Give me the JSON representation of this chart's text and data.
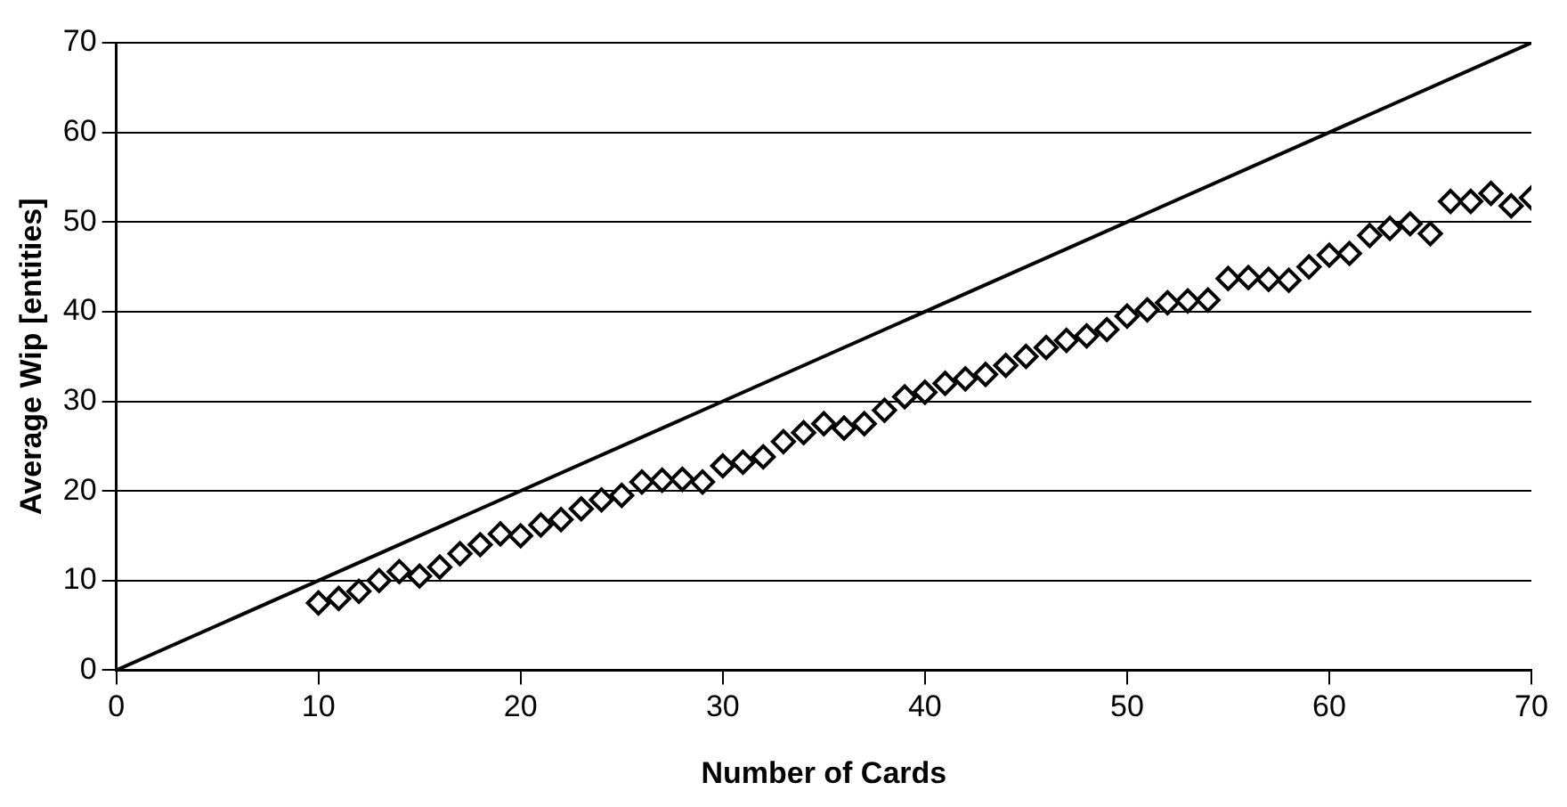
{
  "chart_data": {
    "type": "scatter",
    "xlabel": "Number of Cards",
    "ylabel": "Average Wip [entities]",
    "xlim": [
      0,
      70
    ],
    "ylim": [
      0,
      70
    ],
    "xticks": [
      0,
      10,
      20,
      30,
      40,
      50,
      60,
      70
    ],
    "yticks": [
      0,
      10,
      20,
      30,
      40,
      50,
      60,
      70
    ],
    "grid": "y",
    "legend": false,
    "series": [
      {
        "type": "line",
        "color": "#000000",
        "marker": "none",
        "x": [
          0,
          70
        ],
        "values": [
          0,
          70
        ]
      },
      {
        "color": "#000000",
        "marker": "diamond",
        "x": [
          10,
          11,
          12,
          13,
          14,
          15,
          16,
          17,
          18,
          19,
          20,
          21,
          22,
          23,
          24,
          25,
          26,
          27,
          28,
          29,
          30,
          31,
          32,
          33,
          34,
          35,
          36,
          37,
          38,
          39,
          40,
          41,
          42,
          43,
          44,
          45,
          46,
          47,
          48,
          49,
          50,
          51,
          52,
          53,
          54,
          55,
          56,
          57,
          58,
          59,
          60,
          61,
          62,
          63,
          64,
          65,
          66,
          67,
          68,
          69,
          70
        ],
        "values": [
          7.5,
          8,
          8.8,
          10,
          11,
          10.5,
          11.5,
          13,
          14,
          15.2,
          15,
          16.2,
          16.8,
          18,
          19,
          19.5,
          21,
          21.2,
          21.3,
          21,
          22.8,
          23.2,
          23.8,
          25.5,
          26.5,
          27.5,
          27,
          27.5,
          29,
          30.5,
          31,
          32,
          32.5,
          33,
          34,
          35,
          36,
          36.8,
          37.3,
          38,
          39.5,
          40.2,
          41,
          41.2,
          41.3,
          43.7,
          43.8,
          43.6,
          43.5,
          45,
          46.3,
          46.5,
          48.5,
          49.3,
          49.8,
          48.7,
          52.3,
          52.3,
          53.2,
          51.8,
          52.7
        ]
      }
    ]
  }
}
